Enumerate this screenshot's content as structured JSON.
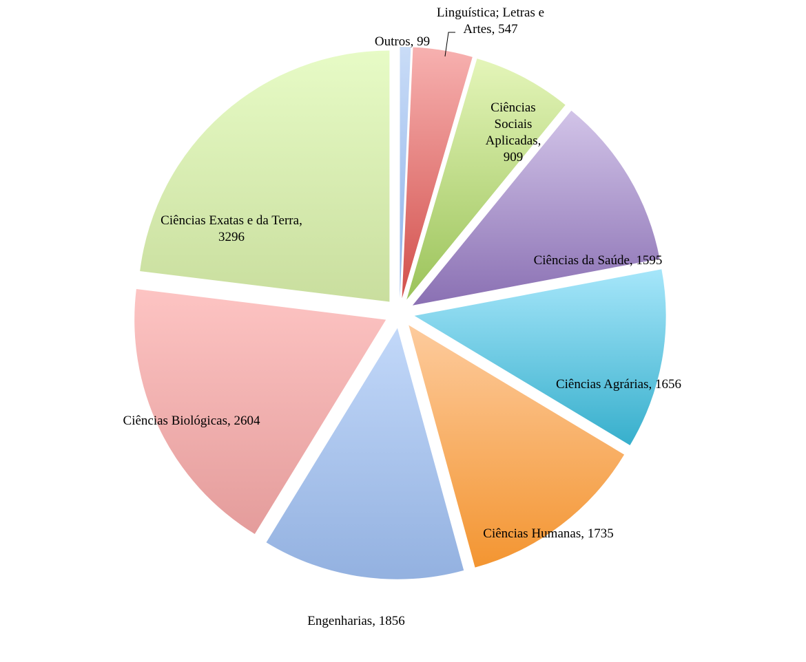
{
  "chart_data": {
    "type": "pie",
    "title": "",
    "legend": "none",
    "slices": [
      {
        "label": "Outros",
        "value": 99,
        "display": "Outros, 99",
        "color_light": "#c9dcf7",
        "color_dark": "#8db1ea"
      },
      {
        "label": "Linguística; Letras e Artes",
        "value": 547,
        "display": "Linguística; Letras e Artes, 547",
        "color_light": "#f7b1b0",
        "color_dark": "#d2504c"
      },
      {
        "label": "Ciências Sociais Aplicadas",
        "value": 909,
        "display": "Ciências Sociais Aplicadas, 909",
        "color_light": "#e4f5b9",
        "color_dark": "#9bc35a"
      },
      {
        "label": "Ciências da Saúde",
        "value": 1595,
        "display": "Ciências da Saúde, 1595",
        "color_light": "#d2c4e8",
        "color_dark": "#8a70b3"
      },
      {
        "label": "Ciências Agrárias",
        "value": 1656,
        "display": "Ciências Agrárias, 1656",
        "color_light": "#a6e6fa",
        "color_dark": "#37afcc"
      },
      {
        "label": "Ciências Humanas",
        "value": 1735,
        "display": "Ciências Humanas, 1735",
        "color_light": "#fdcb9d",
        "color_dark": "#f39531"
      },
      {
        "label": "Engenharias",
        "value": 1856,
        "display": "Engenharias, 1856",
        "color_light": "#c2d8f9",
        "color_dark": "#93b1e0"
      },
      {
        "label": "Ciências Biológicas",
        "value": 2604,
        "display": "Ciências Biológicas, 2604",
        "color_light": "#fdc4c3",
        "color_dark": "#e49c9b"
      },
      {
        "label": "Ciências Exatas e da Terra",
        "value": 3296,
        "display": "Ciências Exatas e da Terra, 3296",
        "color_light": "#e7fbc6",
        "color_dark": "#c9de9e"
      }
    ]
  }
}
